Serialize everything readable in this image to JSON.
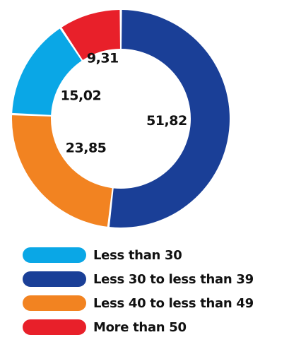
{
  "chart_data": {
    "type": "pie",
    "donut": true,
    "slices": [
      {
        "label": "Less 30 to less than 39",
        "value": 51.82,
        "value_text": "51,82",
        "color": "#1a3f97"
      },
      {
        "label": "Less 40 to less than 49",
        "value": 23.85,
        "value_text": "23,85",
        "color": "#f28321"
      },
      {
        "label": "Less than 30",
        "value": 15.02,
        "value_text": "15,02",
        "color": "#0aa7e6"
      },
      {
        "label": "More than 50",
        "value": 9.31,
        "value_text": "9,31",
        "color": "#e8202a"
      }
    ],
    "legend_placement": "bottom"
  },
  "legend": {
    "items": [
      {
        "label": "Less than 30",
        "color": "#0aa7e6"
      },
      {
        "label": "Less 30 to less than 39",
        "color": "#1a3f97"
      },
      {
        "label": "Less 40 to less than 49",
        "color": "#f28321"
      },
      {
        "label": "More than 50",
        "color": "#e8202a"
      }
    ]
  }
}
